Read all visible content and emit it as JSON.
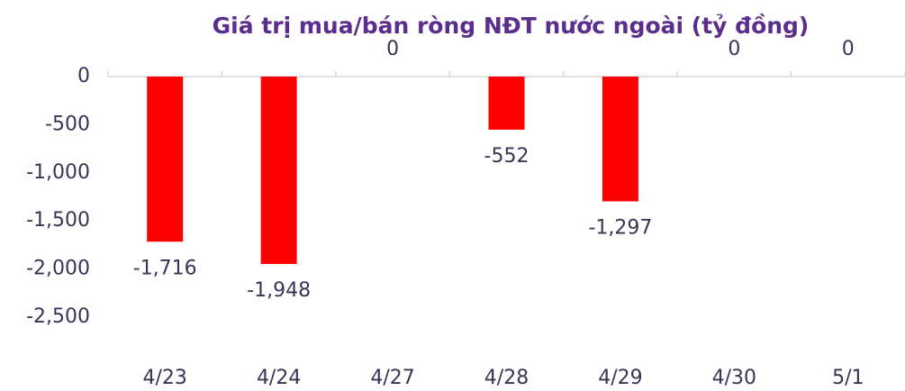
{
  "chart_data": {
    "type": "bar",
    "title": "Giá trị mua/bán ròng NĐT nước ngoài (tỷ đồng)",
    "categories": [
      "4/23",
      "4/24",
      "4/27",
      "4/28",
      "4/29",
      "4/30",
      "5/1"
    ],
    "values": [
      -1716,
      -1948,
      0,
      -552,
      -1297,
      0,
      0
    ],
    "value_labels": [
      "-1,716",
      "-1,948",
      "0",
      "-552",
      "-1,297",
      "0",
      "0"
    ],
    "color": "#ff0000",
    "ylim": [
      -2500,
      0
    ],
    "yticks": [
      0,
      -500,
      {
        "value": -1000,
        "label": "-1,000"
      },
      {
        "value": -1500,
        "label": "-1,500"
      },
      {
        "value": -2000,
        "label": "-2,000"
      },
      {
        "value": -2500,
        "label": "-2,500"
      }
    ],
    "grid": false
  }
}
